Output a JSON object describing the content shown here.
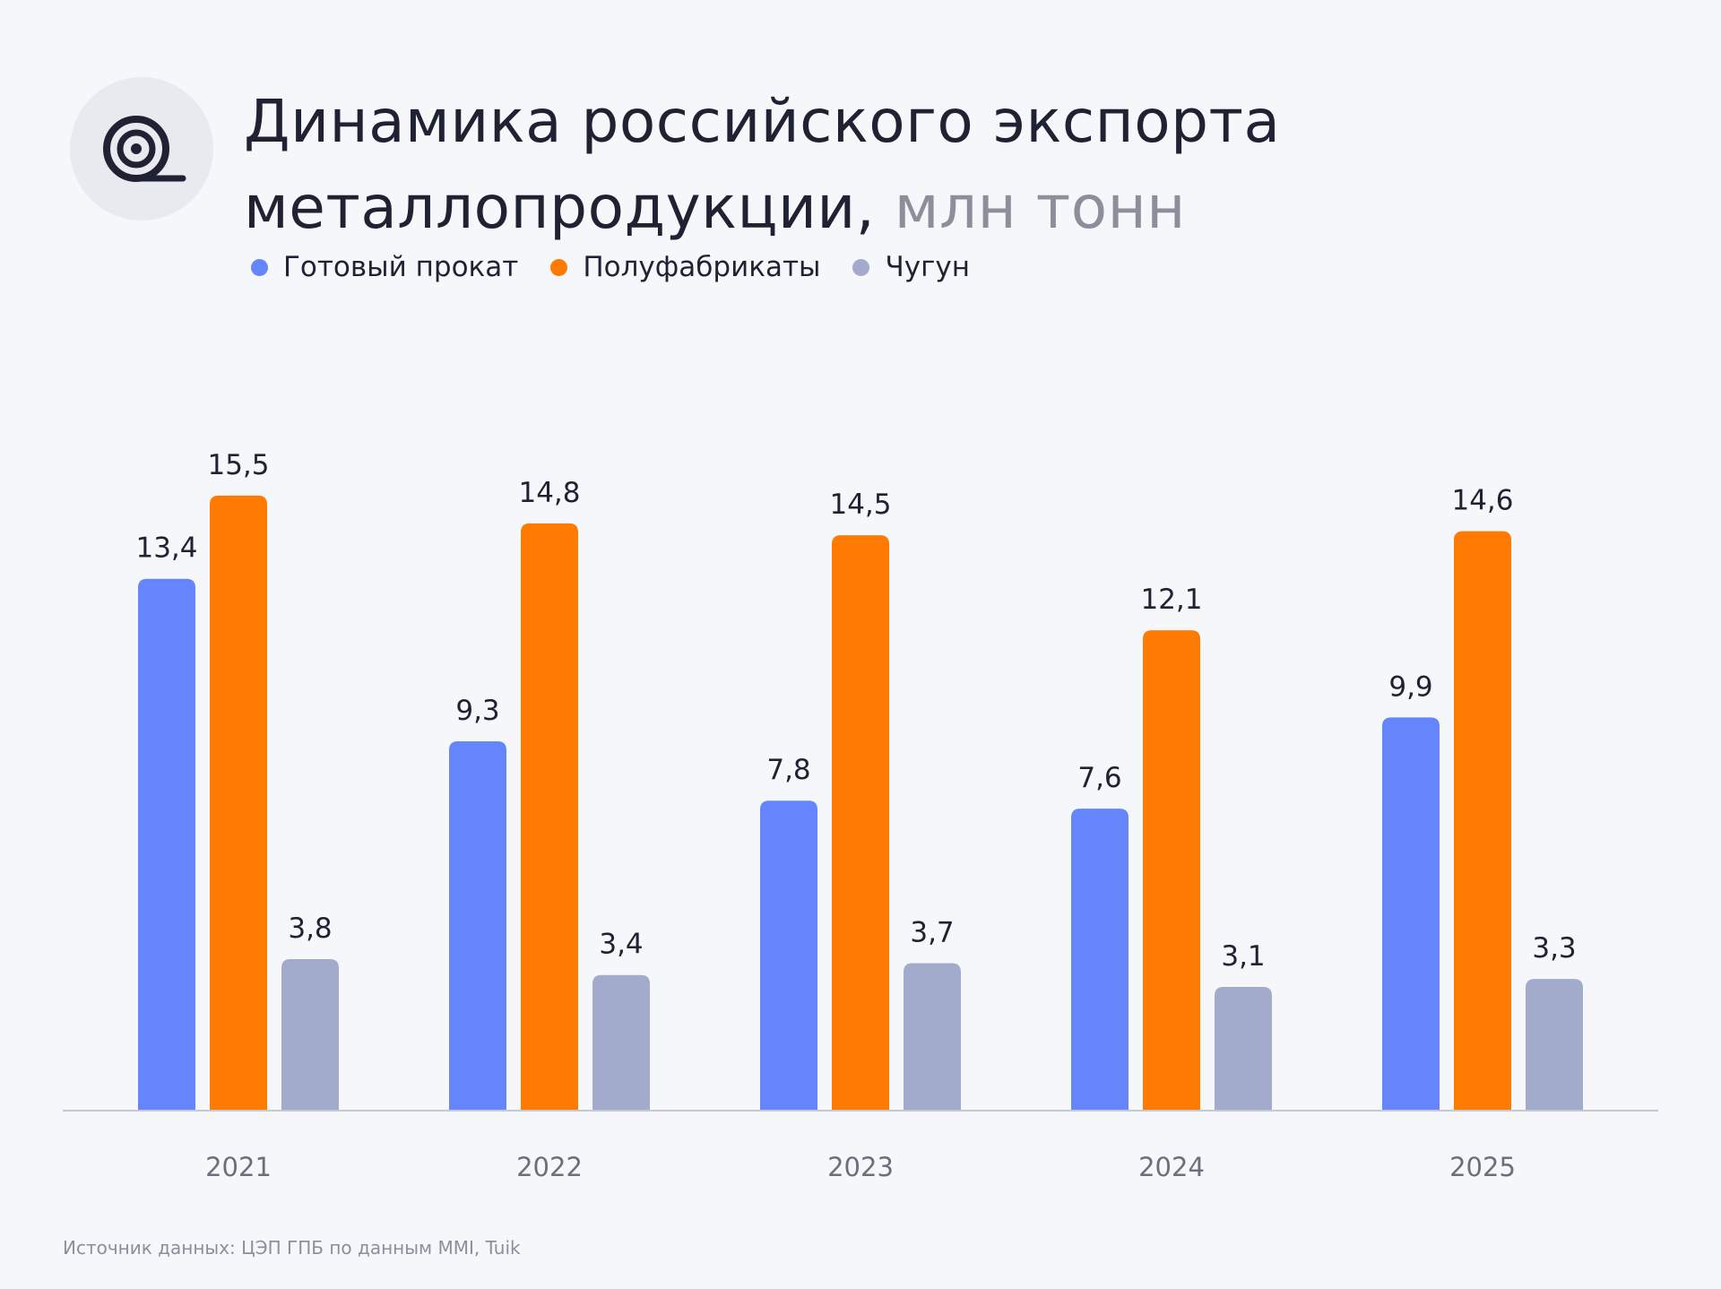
{
  "header": {
    "title": "Динамика российского экспорта металлопродукции,",
    "unit": "млн тонн",
    "icon": "metal-roll-icon"
  },
  "source": "Источник данных: ЦЭП ГПБ по данным MMI, Tuik",
  "colors": {
    "finished_rolled": "#6585fd",
    "semi_finished": "#ff7a00",
    "pig_iron": "#a3abcc",
    "axis": "#c5c9d6",
    "label": "#1e2233",
    "tick": "#6b6f7c"
  },
  "chart_data": {
    "type": "bar",
    "categories": [
      "2021",
      "2022",
      "2023",
      "2024",
      "2025"
    ],
    "series": [
      {
        "name": "Готовый прокат",
        "values": [
          13.4,
          9.3,
          7.8,
          7.6,
          9.9
        ],
        "labels": [
          "13,4",
          "9,3",
          "7,8",
          "7,6",
          "9,9"
        ],
        "color": "#6585fd"
      },
      {
        "name": "Полуфабрикаты",
        "values": [
          15.5,
          14.8,
          14.5,
          12.1,
          14.6
        ],
        "labels": [
          "15,5",
          "14,8",
          "14,5",
          "12,1",
          "14,6"
        ],
        "color": "#ff7a00"
      },
      {
        "name": "Чугун",
        "values": [
          3.8,
          3.4,
          3.7,
          3.1,
          3.3
        ],
        "labels": [
          "3,8",
          "3,4",
          "3,7",
          "3,1",
          "3,3"
        ],
        "color": "#a3abcc"
      }
    ],
    "title": "Динамика российского экспорта металлопродукции, млн тонн",
    "xlabel": "",
    "ylabel": "",
    "ylim": [
      0,
      16
    ],
    "grid": false,
    "legend": "top-left"
  }
}
